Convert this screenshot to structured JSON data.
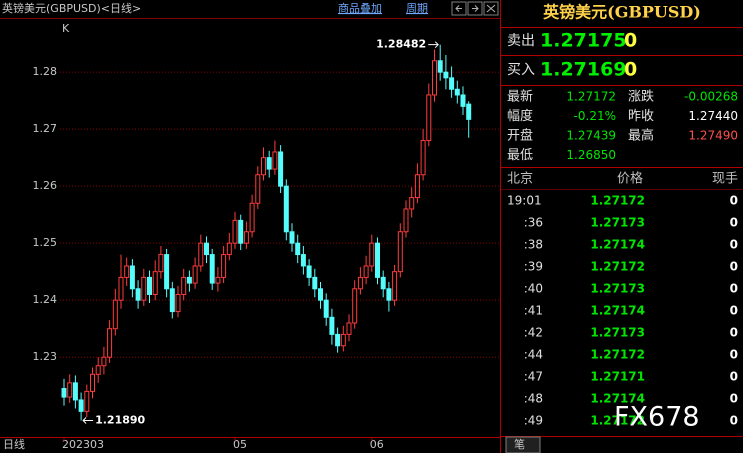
{
  "header": {
    "title": "英镑美元(GBPUSD)<日线>",
    "overlay": "商品叠加",
    "period": "周期"
  },
  "chart_data": {
    "type": "candlestick",
    "label": "K",
    "period_label": "日线",
    "categories": [
      "202303",
      null,
      null,
      null,
      null,
      null,
      null,
      null,
      null,
      null,
      null,
      null,
      null,
      null,
      null,
      null,
      null,
      null,
      null,
      null,
      null,
      null,
      null,
      null,
      null,
      null,
      null,
      null,
      null,
      null,
      "05",
      null,
      null,
      null,
      null,
      null,
      null,
      null,
      null,
      null,
      null,
      null,
      null,
      null,
      null,
      null,
      null,
      null,
      null,
      null,
      null,
      null,
      null,
      null,
      "06",
      null,
      null,
      null,
      null,
      null,
      null,
      null,
      null,
      null,
      null,
      null,
      null,
      null,
      null,
      null,
      null,
      null
    ],
    "open": [
      1.2245,
      1.223,
      1.2255,
      1.2225,
      1.2205,
      1.224,
      1.227,
      1.2285,
      1.23,
      1.235,
      1.24,
      1.244,
      1.246,
      1.242,
      1.24,
      1.244,
      1.241,
      1.245,
      1.248,
      1.242,
      1.238,
      1.241,
      1.244,
      1.243,
      1.246,
      1.25,
      1.248,
      1.243,
      1.244,
      1.248,
      1.25,
      1.254,
      1.25,
      1.252,
      1.257,
      1.262,
      1.265,
      1.263,
      1.266,
      1.26,
      1.252,
      1.25,
      1.248,
      1.246,
      1.244,
      1.242,
      1.24,
      1.237,
      1.234,
      1.232,
      1.234,
      1.236,
      1.242,
      1.244,
      1.246,
      1.25,
      1.244,
      1.242,
      1.24,
      1.245,
      1.252,
      1.256,
      1.258,
      1.262,
      1.268,
      1.276,
      1.282,
      1.28,
      1.279,
      1.277,
      1.276,
      1.27439
    ],
    "high": [
      1.2262,
      1.227,
      1.2268,
      1.2238,
      1.2252,
      1.2282,
      1.23,
      1.2318,
      1.2365,
      1.242,
      1.248,
      1.2475,
      1.2472,
      1.2435,
      1.2455,
      1.2452,
      1.247,
      1.2495,
      1.249,
      1.2432,
      1.2425,
      1.2455,
      1.2452,
      1.2475,
      1.2515,
      1.2512,
      1.249,
      1.2458,
      1.2495,
      1.2518,
      1.2555,
      1.255,
      1.2538,
      1.2585,
      1.2635,
      1.2668,
      1.2662,
      1.268,
      1.2672,
      1.2612,
      1.2535,
      1.2515,
      1.2495,
      1.2472,
      1.2455,
      1.2432,
      1.2412,
      1.2385,
      1.2352,
      1.2355,
      1.2375,
      1.2435,
      1.2458,
      1.2478,
      1.2515,
      1.251,
      1.2452,
      1.2432,
      1.2462,
      1.2535,
      1.2575,
      1.2598,
      1.264,
      1.27,
      1.278,
      1.284,
      1.28482,
      1.283,
      1.281,
      1.2785,
      1.2775,
      1.2749
    ],
    "low": [
      1.2215,
      1.222,
      1.221,
      1.2189,
      1.2195,
      1.2228,
      1.2255,
      1.227,
      1.229,
      1.2338,
      1.2385,
      1.2425,
      1.2405,
      1.2385,
      1.239,
      1.2395,
      1.24,
      1.2438,
      1.2405,
      1.2368,
      1.237,
      1.24,
      1.2415,
      1.242,
      1.245,
      1.2465,
      1.2418,
      1.2415,
      1.243,
      1.247,
      1.249,
      1.2488,
      1.249,
      1.251,
      1.256,
      1.261,
      1.2615,
      1.262,
      1.2588,
      1.2505,
      1.2485,
      1.2465,
      1.2445,
      1.2425,
      1.2405,
      1.2385,
      1.2355,
      1.2322,
      1.2308,
      1.231,
      1.2328,
      1.235,
      1.241,
      1.2428,
      1.245,
      1.2428,
      1.2405,
      1.238,
      1.239,
      1.244,
      1.251,
      1.2545,
      1.257,
      1.261,
      1.267,
      1.2748,
      1.2785,
      1.277,
      1.2755,
      1.2745,
      1.2725,
      1.2685
    ],
    "close": [
      1.223,
      1.2255,
      1.2225,
      1.2205,
      1.224,
      1.227,
      1.2285,
      1.23,
      1.235,
      1.24,
      1.244,
      1.246,
      1.242,
      1.24,
      1.244,
      1.241,
      1.245,
      1.248,
      1.242,
      1.238,
      1.241,
      1.244,
      1.243,
      1.246,
      1.25,
      1.248,
      1.243,
      1.244,
      1.248,
      1.25,
      1.254,
      1.25,
      1.252,
      1.257,
      1.262,
      1.265,
      1.263,
      1.266,
      1.26,
      1.252,
      1.25,
      1.248,
      1.246,
      1.244,
      1.242,
      1.24,
      1.237,
      1.234,
      1.232,
      1.234,
      1.236,
      1.242,
      1.244,
      1.246,
      1.25,
      1.244,
      1.242,
      1.24,
      1.245,
      1.252,
      1.256,
      1.258,
      1.262,
      1.268,
      1.276,
      1.282,
      1.28,
      1.279,
      1.277,
      1.276,
      1.274,
      1.27172
    ],
    "up_color": "#ff3c3c",
    "down_color": "#54fcfc",
    "ylim": [
      1.216,
      1.2895
    ],
    "yticks": [
      1.23,
      1.24,
      1.25,
      1.26,
      1.27,
      1.28
    ],
    "grid": true,
    "max_label": "1.28482",
    "min_label": "1.21890"
  },
  "panel": {
    "title": "英镑美元(GBPUSD)",
    "sell": {
      "label": "卖出",
      "price": "1.27175",
      "volume": "0"
    },
    "buy": {
      "label": "买入",
      "price": "1.27169",
      "volume": "0"
    },
    "quote": [
      [
        "最新",
        "1.27172",
        "涨跌",
        "-0.00268"
      ],
      [
        "幅度",
        "-0.21%",
        "昨收",
        "1.27440"
      ],
      [
        "开盘",
        "1.27439",
        "最高",
        "1.27490"
      ],
      [
        "最低",
        "1.26850"
      ]
    ],
    "ticks_header": [
      "北京",
      "价格",
      "现手"
    ],
    "ticks": [
      [
        "19:01",
        "1.27172",
        "0"
      ],
      [
        ":36",
        "1.27173",
        "0"
      ],
      [
        ":38",
        "1.27174",
        "0"
      ],
      [
        ":39",
        "1.27172",
        "0"
      ],
      [
        ":40",
        "1.27173",
        "0"
      ],
      [
        ":41",
        "1.27174",
        "0"
      ],
      [
        ":42",
        "1.27173",
        "0"
      ],
      [
        ":44",
        "1.27172",
        "0"
      ],
      [
        ":47",
        "1.27171",
        "0"
      ],
      [
        ":48",
        "1.27174",
        "0"
      ],
      [
        ":49",
        "1.27172",
        "0"
      ]
    ],
    "tab": "笔"
  },
  "watermark": "FX678"
}
